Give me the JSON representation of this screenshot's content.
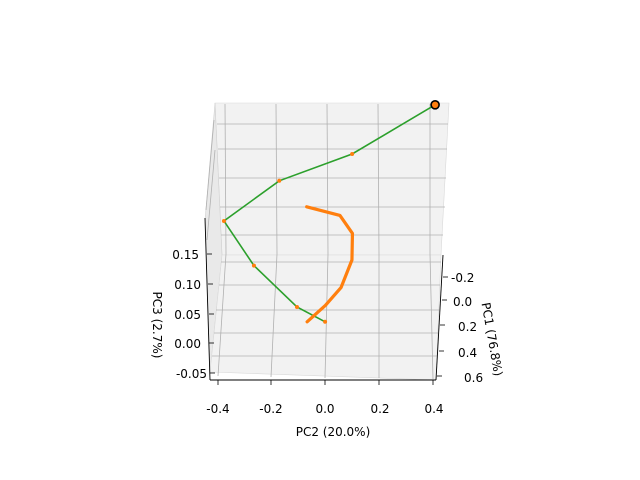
{
  "chart_data": {
    "type": "line",
    "projection": "3d",
    "title": "",
    "axes": {
      "x": {
        "label": "PC2 (20.0%)",
        "ticks": [
          "-0.4",
          "-0.2",
          "0.0",
          "0.2",
          "0.4"
        ]
      },
      "y": {
        "label": "PC1 (76.8%)",
        "ticks": [
          "-0.2",
          "0.0",
          "0.2",
          "0.4",
          "0.6"
        ]
      },
      "z": {
        "label": "PC3 (2.7%)",
        "ticks": [
          "-0.05",
          "0.00",
          "0.05",
          "0.10",
          "0.15"
        ]
      }
    },
    "grid": true,
    "colors": {
      "orange": "#ff7f0e",
      "green": "#2ca02c",
      "pane": "#f2f2f2",
      "grid": "#b0b0b0"
    },
    "series": [
      {
        "color": "#2ca02c",
        "style": "polyline with orange vertex markers",
        "points": [
          {
            "pc2": 0.41,
            "pc1": -0.55,
            "pc3": 0.26
          },
          {
            "pc2": 0.09,
            "pc1": -0.4,
            "pc3": 0.2
          },
          {
            "pc2": -0.19,
            "pc1": -0.22,
            "pc3": 0.18
          },
          {
            "pc2": -0.4,
            "pc1": 0.05,
            "pc3": 0.15
          },
          {
            "pc2": -0.28,
            "pc1": 0.22,
            "pc3": 0.1
          },
          {
            "pc2": -0.11,
            "pc1": 0.35,
            "pc3": 0.05
          },
          {
            "pc2": 0.0,
            "pc1": 0.38,
            "pc3": 0.03
          }
        ]
      },
      {
        "color": "#ff7f0e",
        "style": "thick curve",
        "points": [
          {
            "pc2": -0.08,
            "pc1": -0.05,
            "pc3": 0.16
          },
          {
            "pc2": 0.05,
            "pc1": -0.02,
            "pc3": 0.15
          },
          {
            "pc2": 0.1,
            "pc1": 0.05,
            "pc3": 0.13
          },
          {
            "pc2": 0.1,
            "pc1": 0.15,
            "pc3": 0.1
          },
          {
            "pc2": 0.06,
            "pc1": 0.26,
            "pc3": 0.07
          },
          {
            "pc2": 0.0,
            "pc1": 0.33,
            "pc3": 0.05
          },
          {
            "pc2": -0.07,
            "pc1": 0.38,
            "pc3": 0.03
          }
        ]
      }
    ],
    "start_marker": {
      "pc2": 0.41,
      "pc1": -0.55,
      "pc3": 0.26,
      "color": "#000000"
    }
  }
}
